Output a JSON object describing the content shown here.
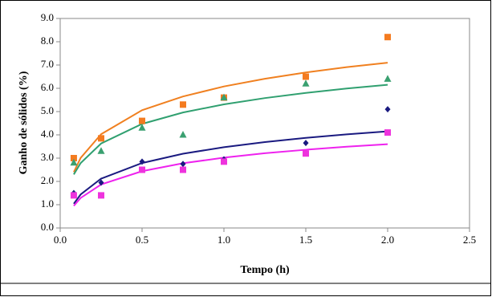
{
  "chart_data": {
    "type": "scatter",
    "x_label": "Tempo (h)",
    "y_label": "Ganho de sólidos (%)",
    "xlim": [
      0,
      2.5
    ],
    "ylim": [
      0,
      9
    ],
    "xticks": [
      {
        "value": 0,
        "label": "0.0"
      },
      {
        "value": 0.5,
        "label": "0.5"
      },
      {
        "value": 1,
        "label": "1.0"
      },
      {
        "value": 1.5,
        "label": "1.5"
      },
      {
        "value": 2,
        "label": "2.0"
      },
      {
        "value": 2.5,
        "label": "2.5"
      }
    ],
    "yticks": [
      {
        "value": 0,
        "label": "0.0"
      },
      {
        "value": 1,
        "label": "1.0"
      },
      {
        "value": 2,
        "label": "2.0"
      },
      {
        "value": 3,
        "label": "3.0"
      },
      {
        "value": 4,
        "label": "4.0"
      },
      {
        "value": 5,
        "label": "5.0"
      },
      {
        "value": 6,
        "label": "6.0"
      },
      {
        "value": 7,
        "label": "7.0"
      },
      {
        "value": 8,
        "label": "8.0"
      },
      {
        "value": 9,
        "label": "9.0"
      }
    ],
    "series": [
      {
        "color": "#f47b20",
        "marker": "square",
        "x": [
          0.083,
          0.25,
          0.5,
          0.75,
          1,
          1.5,
          2
        ],
        "values": [
          3.0,
          3.85,
          4.6,
          5.3,
          5.6,
          6.5,
          8.2
        ]
      },
      {
        "color": "#3aa070",
        "marker": "triangle",
        "x": [
          0.083,
          0.25,
          0.5,
          0.75,
          1,
          1.5,
          2
        ],
        "values": [
          2.8,
          3.3,
          4.3,
          4.0,
          5.6,
          6.2,
          6.4
        ]
      },
      {
        "color": "#1a1a80",
        "marker": "diamond",
        "x": [
          0.083,
          0.25,
          0.5,
          0.75,
          1,
          1.5,
          2
        ],
        "values": [
          1.5,
          1.95,
          2.85,
          2.75,
          2.95,
          3.65,
          5.1
        ]
      },
      {
        "color": "#ee33dd",
        "marker": "square",
        "x": [
          0.083,
          0.25,
          0.5,
          0.75,
          1,
          1.5,
          2
        ],
        "values": [
          1.4,
          1.4,
          2.5,
          2.5,
          2.85,
          3.2,
          4.1
        ]
      }
    ],
    "trendlines": [
      {
        "color": "#f08020",
        "x": [
          0.083,
          0.125,
          0.25,
          0.5,
          0.75,
          1,
          1.25,
          1.5,
          1.75,
          2
        ],
        "values": [
          2.4,
          3.01,
          4.03,
          5.06,
          5.65,
          6.08,
          6.41,
          6.68,
          6.91,
          7.1
        ]
      },
      {
        "color": "#30a070",
        "x": [
          0.083,
          0.125,
          0.25,
          0.5,
          0.75,
          1,
          1.25,
          1.5,
          1.75,
          2
        ],
        "values": [
          2.3,
          2.79,
          3.63,
          4.47,
          4.96,
          5.31,
          5.58,
          5.8,
          5.99,
          6.15
        ]
      },
      {
        "color": "#1a1a80",
        "x": [
          0.083,
          0.125,
          0.25,
          0.5,
          0.75,
          1,
          1.25,
          1.5,
          1.75,
          2
        ],
        "values": [
          1.04,
          1.44,
          2.12,
          2.79,
          3.19,
          3.47,
          3.69,
          3.87,
          4.02,
          4.15
        ]
      },
      {
        "color": "#ee22ee",
        "x": [
          0.083,
          0.125,
          0.25,
          0.5,
          0.75,
          1,
          1.25,
          1.5,
          1.75,
          2
        ],
        "values": [
          0.95,
          1.29,
          1.87,
          2.44,
          2.78,
          3.02,
          3.21,
          3.36,
          3.49,
          3.6
        ]
      }
    ]
  }
}
